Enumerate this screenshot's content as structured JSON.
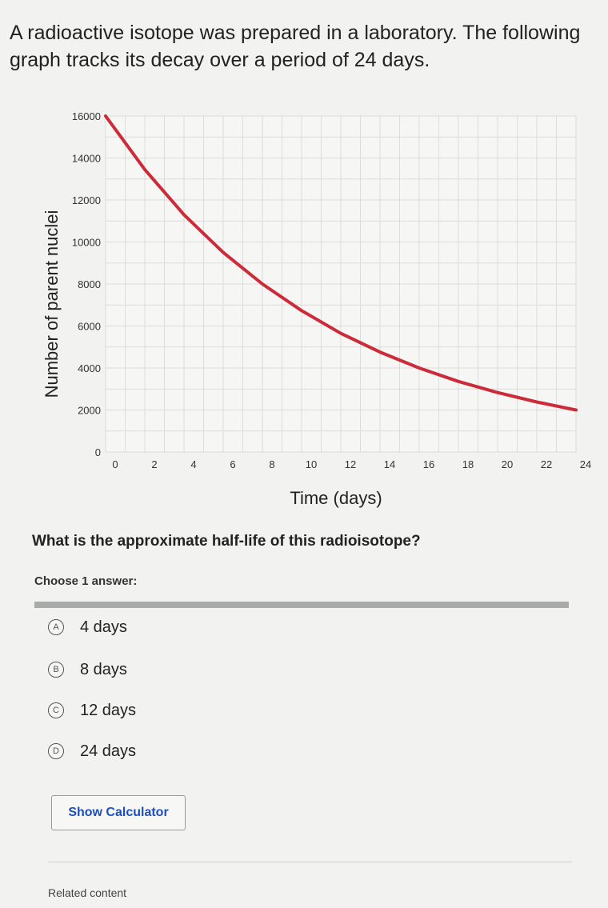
{
  "question": {
    "text": "A radioactive isotope was prepared in a laboratory. The following graph tracks its decay over a period of 24 days."
  },
  "prompt": "What is the approximate half-life of this radioisotope?",
  "choose_label": "Choose 1 answer:",
  "choices": [
    {
      "letter": "A",
      "text": "4 days"
    },
    {
      "letter": "B",
      "text": "8 days"
    },
    {
      "letter": "C",
      "text": "12 days"
    },
    {
      "letter": "D",
      "text": "24 days"
    }
  ],
  "calculator_button": "Show Calculator",
  "related_label": "Related content",
  "chart_data": {
    "type": "line",
    "xlabel": "Time (days)",
    "ylabel": "Number of parent nuclei",
    "xlim": [
      0,
      24
    ],
    "ylim": [
      0,
      16000
    ],
    "x_ticks": [
      0,
      2,
      4,
      6,
      8,
      10,
      12,
      14,
      16,
      18,
      20,
      22,
      24
    ],
    "y_ticks": [
      0,
      2000,
      4000,
      6000,
      8000,
      10000,
      12000,
      14000,
      16000
    ],
    "grid": true,
    "series": [
      {
        "color": "#cc2b3a",
        "x": [
          0,
          2,
          4,
          6,
          8,
          10,
          12,
          14,
          16,
          18,
          20,
          22,
          24
        ],
        "y": [
          16000,
          13450,
          11300,
          9500,
          8000,
          6730,
          5650,
          4760,
          4000,
          3360,
          2830,
          2380,
          2000
        ]
      }
    ]
  }
}
